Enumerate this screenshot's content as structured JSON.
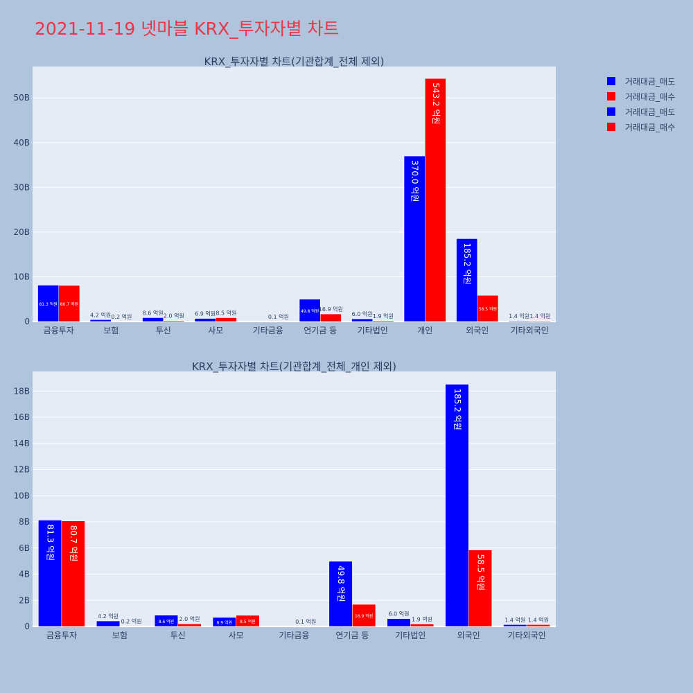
{
  "page": {
    "title": "2021-11-19 넷마블 KRX_투자자별 차트"
  },
  "colors": {
    "sell": "#0000ff",
    "buy": "#ff0000",
    "background": "#b0c4de",
    "plot_bg": "#e5ecf6"
  },
  "legend": {
    "items": [
      {
        "label": "거래대금_매도",
        "color": "#0000ff"
      },
      {
        "label": "거래대금_매수",
        "color": "#ff0000"
      },
      {
        "label": "거래대금_매도",
        "color": "#0000ff"
      },
      {
        "label": "거래대금_매수",
        "color": "#ff0000"
      }
    ]
  },
  "chart_data": [
    {
      "type": "bar",
      "title": "KRX_투자자별 차트(기관합계_전체 제외)",
      "categories": [
        "금융투자",
        "보험",
        "투신",
        "사모",
        "기타금융",
        "연기금 등",
        "기타법인",
        "개인",
        "외국인",
        "기타외국인"
      ],
      "series": [
        {
          "name": "거래대금_매도",
          "color": "#0000ff",
          "values": [
            8130000000,
            420000000,
            860000000,
            690000000,
            0,
            4980000000,
            600000000,
            37000000000,
            18520000000,
            140000000
          ],
          "labels": [
            "81.3 억원",
            "4.2 억원",
            "8.6 억원",
            "6.9 억원",
            "",
            "49.8 억원",
            "6.0 억원",
            "370.0 억원",
            "185.2 억원",
            "1.4 억원"
          ]
        },
        {
          "name": "거래대금_매수",
          "color": "#ff0000",
          "values": [
            8070000000,
            20000000,
            200000000,
            850000000,
            10000000,
            1690000000,
            190000000,
            54320000000,
            5850000000,
            140000000
          ],
          "labels": [
            "80.7 억원",
            "0.2 억원",
            "2.0 억원",
            "8.5 억원",
            "0.1 억원",
            "16.9 억원",
            "1.9 억원",
            "543.2 억원",
            "58.5 억원",
            "1.4 억원"
          ]
        }
      ],
      "ylim": [
        0,
        57000000000
      ],
      "yticks": [
        0,
        10000000000,
        20000000000,
        30000000000,
        40000000000,
        50000000000
      ],
      "ytick_labels": [
        "0",
        "10B",
        "20B",
        "30B",
        "40B",
        "50B"
      ],
      "grid": true
    },
    {
      "type": "bar",
      "title": "KRX_투자자별 차트(기관합계_전체_개인 제외)",
      "categories": [
        "금융투자",
        "보험",
        "투신",
        "사모",
        "기타금융",
        "연기금 등",
        "기타법인",
        "외국인",
        "기타외국인"
      ],
      "series": [
        {
          "name": "거래대금_매도",
          "color": "#0000ff",
          "values": [
            8130000000,
            420000000,
            860000000,
            690000000,
            0,
            4980000000,
            600000000,
            18520000000,
            140000000
          ],
          "labels": [
            "81.3 억원",
            "4.2 억원",
            "8.6 억원",
            "6.9 억원",
            "",
            "49.8 억원",
            "6.0 억원",
            "185.2 억원",
            "1.4 억원"
          ]
        },
        {
          "name": "거래대금_매수",
          "color": "#ff0000",
          "values": [
            8070000000,
            20000000,
            200000000,
            850000000,
            10000000,
            1690000000,
            190000000,
            5850000000,
            140000000
          ],
          "labels": [
            "80.7 억원",
            "0.2 억원",
            "2.0 억원",
            "8.5 억원",
            "0.1 억원",
            "16.9 억원",
            "1.9 억원",
            "58.5 억원",
            "1.4 억원"
          ]
        }
      ],
      "ylim": [
        0,
        19500000000
      ],
      "yticks": [
        0,
        2000000000,
        4000000000,
        6000000000,
        8000000000,
        10000000000,
        12000000000,
        14000000000,
        16000000000,
        18000000000
      ],
      "ytick_labels": [
        "0",
        "2B",
        "4B",
        "6B",
        "8B",
        "10B",
        "12B",
        "14B",
        "16B",
        "18B"
      ],
      "grid": true
    }
  ]
}
